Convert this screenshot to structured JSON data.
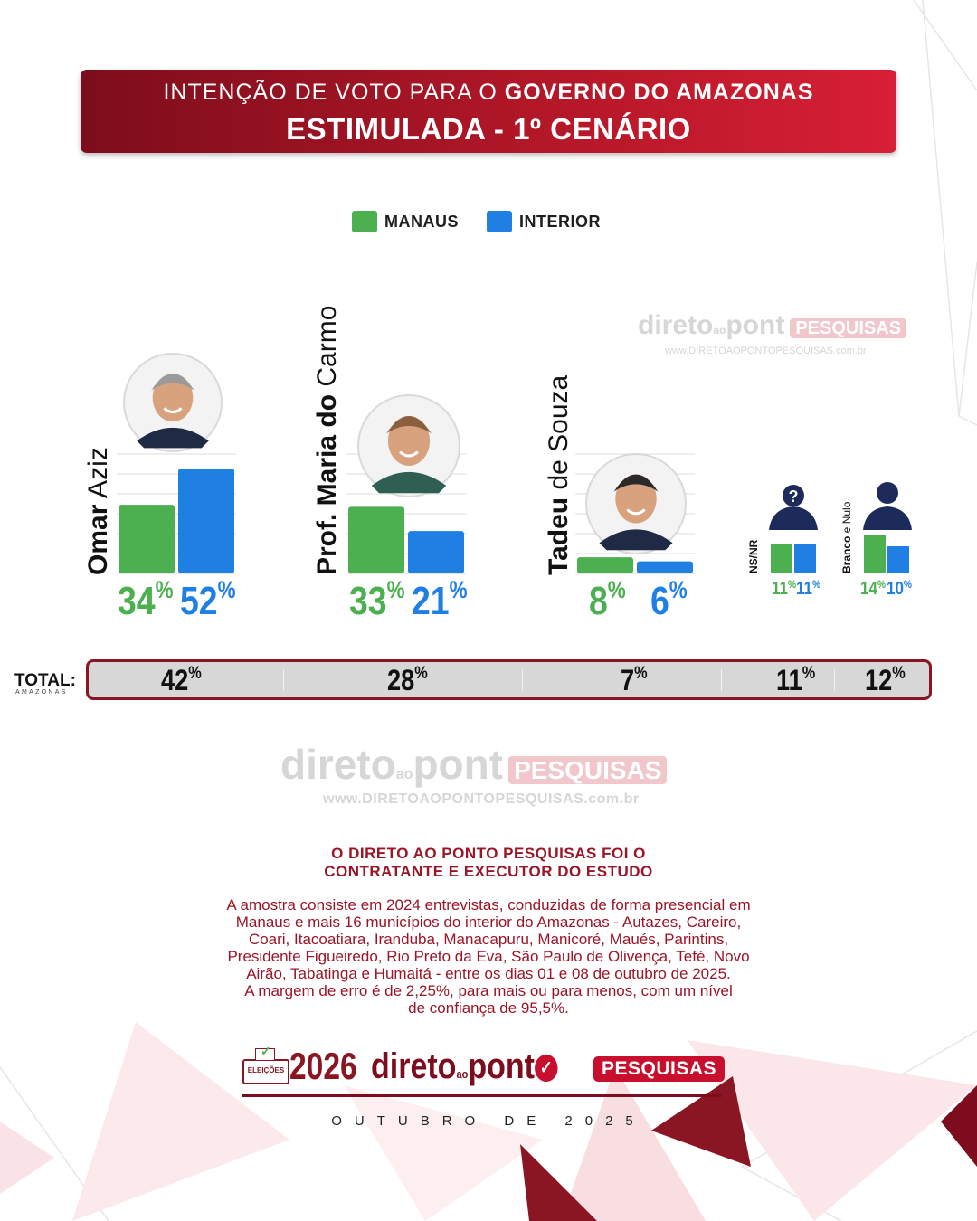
{
  "header": {
    "line1_regular": "INTENÇÃO DE VOTO PARA O ",
    "line1_bold": "GOVERNO DO AMAZONAS",
    "line2": "ESTIMULADA - 1º CENÁRIO"
  },
  "colors": {
    "manaus": "#4caf50",
    "interior": "#1f7fe3",
    "accent": "#9b1527",
    "dark_red": "#7d0d1c"
  },
  "chart_data": {
    "type": "bar",
    "title": "INTENÇÃO DE VOTO PARA O GOVERNO DO AMAZONAS — ESTIMULADA - 1º CENÁRIO",
    "legend": [
      "MANAUS",
      "INTERIOR"
    ],
    "legend_position": "top-center",
    "categories": [
      {
        "first": "Omar",
        "last": "Aziz"
      },
      {
        "first": "Prof. Maria do",
        "last": "Carmo"
      },
      {
        "first": "Tadeu",
        "last": "de Souza"
      },
      {
        "first": "NS/NR",
        "last": ""
      },
      {
        "first": "Branco",
        "last": "e Nulo"
      }
    ],
    "series": [
      {
        "name": "MANAUS",
        "values": [
          34,
          33,
          8,
          11,
          14
        ]
      },
      {
        "name": "INTERIOR",
        "values": [
          52,
          21,
          6,
          11,
          10
        ]
      }
    ],
    "unit": "%",
    "grid": true,
    "total": {
      "label": "TOTAL:",
      "sublabel": "AMAZONAS",
      "values": [
        42,
        28,
        7,
        11,
        12
      ]
    }
  },
  "watermark": {
    "brand_a": "direto",
    "brand_ao": "ao",
    "brand_b": "pont",
    "pesquisas": "PESQUISAS",
    "url": "www.DIRETOAOPONTOPESQUISAS.com.br"
  },
  "info": {
    "headline_1": "O DIRETO AO PONTO PESQUISAS FOI O",
    "headline_2": "CONTRATANTE E EXECUTOR DO ESTUDO",
    "body": [
      "A amostra consiste em 2024 entrevistas, conduzidas de forma presencial em",
      "Manaus e mais 16 municípios do interior do Amazonas - Autazes, Careiro,",
      "Coari, Itacoatiara, Iranduba, Manacapuru, Manicoré, Maués, Parintins,",
      "Presidente Figueiredo, Rio Preto da Eva, São Paulo de Olivença, Tefé, Novo",
      "Airão, Tabatinga e Humaitá - entre os dias 01 e 08 de outubro de 2025.",
      "A margem de erro é de 2,25%, para mais ou para menos, com um nível",
      "de confiança de 95,5%."
    ]
  },
  "footer": {
    "eleicoes": "ELEIÇÕES",
    "year": "2026",
    "brand_a": "direto",
    "brand_ao": "ao",
    "brand_b": "pont",
    "pesquisas": "PESQUISAS",
    "date": "OUTUBRO DE 2025"
  }
}
